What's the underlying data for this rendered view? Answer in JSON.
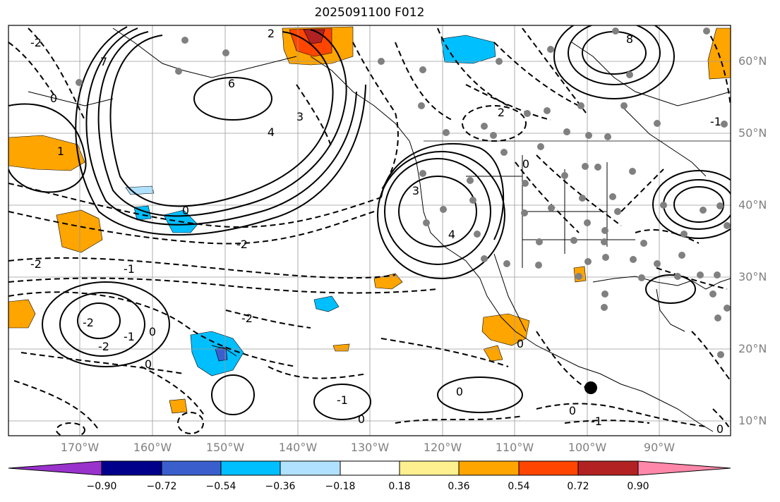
{
  "title": "2025091100 F012",
  "lat_labels": [
    "60°N",
    "50°N",
    "40°N",
    "30°N",
    "20°N",
    "10°N"
  ],
  "lon_labels": [
    "170°W",
    "160°W",
    "150°W",
    "140°W",
    "130°W",
    "120°W",
    "110°W",
    "100°W",
    "90°W"
  ],
  "colorbar": {
    "ticks": [
      "−0.90",
      "−0.72",
      "−0.54",
      "−0.36",
      "−0.18",
      "0.18",
      "0.36",
      "0.54",
      "0.72",
      "0.90"
    ],
    "colors": [
      "#9932cc",
      "#00008b",
      "#3a5fcd",
      "#00bfff",
      "#b0e2ff",
      "#ffffff",
      "#fff08f",
      "#ffa500",
      "#ff4500",
      "#b22222",
      "#ff88aa"
    ]
  },
  "contour_labels": [
    "2",
    "-2",
    "7",
    "6",
    "4",
    "3",
    "1",
    "0",
    "0",
    "-2",
    "-2",
    "-1",
    "2",
    "3",
    "4",
    "0",
    "8",
    "-1",
    "-2",
    "-2",
    "0",
    "0",
    "-2",
    "-1",
    "-1",
    "0",
    "0",
    "-1",
    "0",
    "0",
    "0"
  ],
  "map_marker": "filled-circle"
}
